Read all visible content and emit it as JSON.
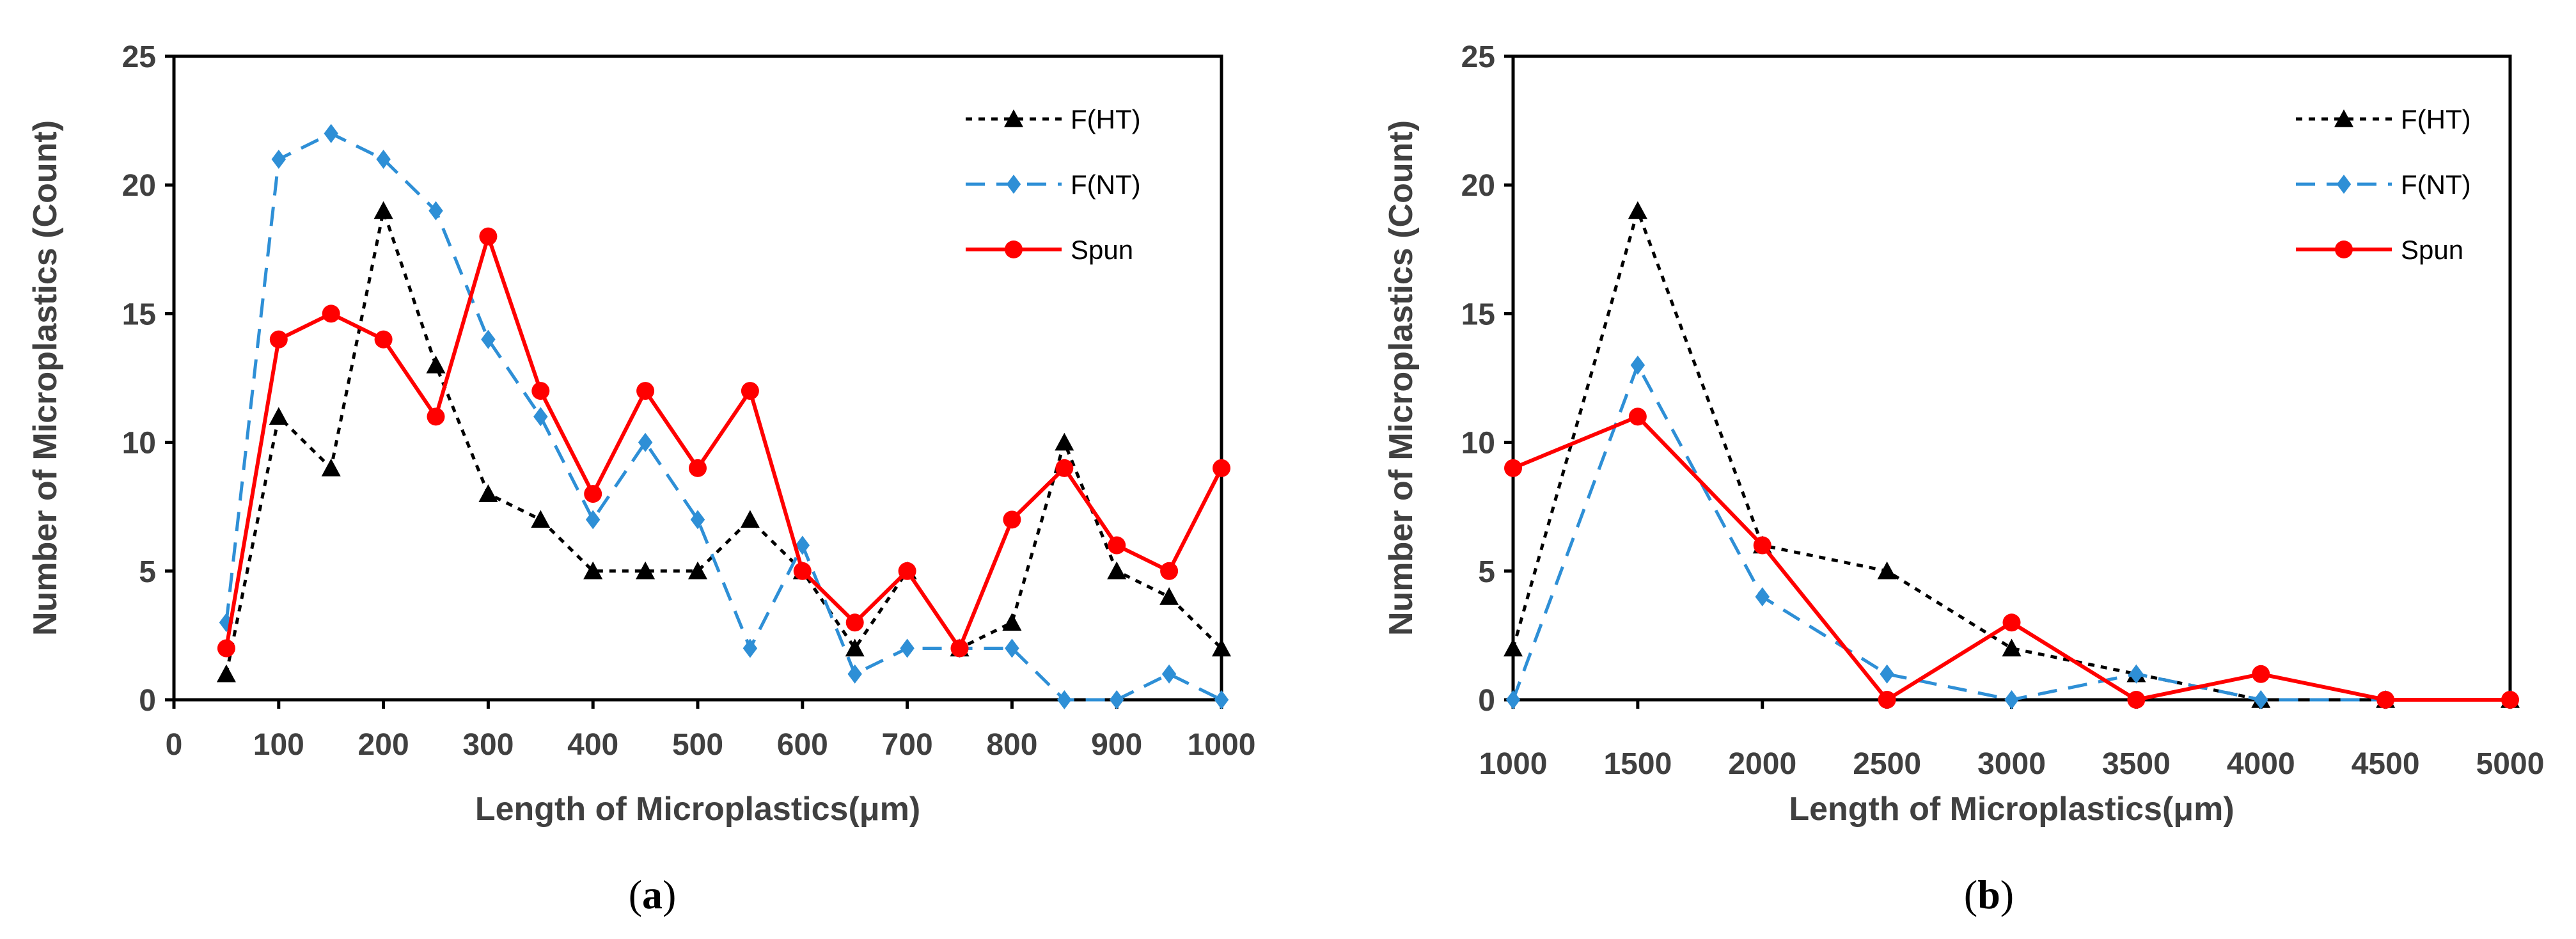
{
  "colors": {
    "F(HT)": "#000000",
    "F(NT)": "#2E8FD6",
    "Spun": "#FF0000",
    "axis": "#000000",
    "text": "#404040"
  },
  "chart_data": [
    {
      "panel": "a",
      "panel_label": "a",
      "type": "line",
      "title": "",
      "xlabel": "Length of Microplastics(μm)",
      "ylabel": "Number of Microplastics (Count)",
      "xlim": [
        0,
        1000
      ],
      "ylim": [
        0,
        25
      ],
      "x_ticks": [
        0,
        100,
        200,
        300,
        400,
        500,
        600,
        700,
        800,
        900,
        1000
      ],
      "y_ticks": [
        0,
        5,
        10,
        15,
        20,
        25
      ],
      "legend_position": "top-right",
      "x": [
        50,
        100,
        150,
        200,
        250,
        300,
        350,
        400,
        450,
        500,
        550,
        600,
        650,
        700,
        750,
        800,
        850,
        900,
        950,
        1000
      ],
      "series": [
        {
          "name": "F(HT)",
          "style": "dotted",
          "marker": "triangle",
          "values": [
            1,
            11,
            9,
            19,
            13,
            8,
            7,
            5,
            5,
            5,
            7,
            5,
            2,
            5,
            2,
            3,
            10,
            5,
            4,
            2
          ]
        },
        {
          "name": "F(NT)",
          "style": "dashed",
          "marker": "diamond",
          "values": [
            3,
            21,
            22,
            21,
            19,
            14,
            11,
            7,
            10,
            7,
            2,
            6,
            1,
            2,
            2,
            2,
            0,
            0,
            1,
            0
          ]
        },
        {
          "name": "Spun",
          "style": "solid",
          "marker": "circle",
          "values": [
            2,
            14,
            15,
            14,
            11,
            18,
            12,
            8,
            12,
            9,
            12,
            5,
            3,
            5,
            2,
            7,
            9,
            6,
            5,
            9
          ]
        }
      ]
    },
    {
      "panel": "b",
      "panel_label": "b",
      "type": "line",
      "title": "",
      "xlabel": "Length of Microplastics(μm)",
      "ylabel": "Number of Microplastics (Count)",
      "xlim": [
        1000,
        5000
      ],
      "ylim": [
        0,
        25
      ],
      "x_ticks": [
        1000,
        1500,
        2000,
        2500,
        3000,
        3500,
        4000,
        4500,
        5000
      ],
      "y_ticks": [
        0,
        5,
        10,
        15,
        20,
        25
      ],
      "legend_position": "top-right",
      "x": [
        1000,
        1500,
        2000,
        2500,
        3000,
        3500,
        4000,
        4500,
        5000
      ],
      "series": [
        {
          "name": "F(HT)",
          "style": "dotted",
          "marker": "triangle",
          "values": [
            2,
            19,
            6,
            5,
            2,
            1,
            0,
            0,
            0
          ]
        },
        {
          "name": "F(NT)",
          "style": "dashed",
          "marker": "diamond",
          "values": [
            0,
            13,
            4,
            1,
            0,
            1,
            0,
            0,
            0
          ]
        },
        {
          "name": "Spun",
          "style": "solid",
          "marker": "circle",
          "values": [
            9,
            11,
            6,
            0,
            3,
            0,
            1,
            0,
            0
          ]
        }
      ]
    }
  ]
}
